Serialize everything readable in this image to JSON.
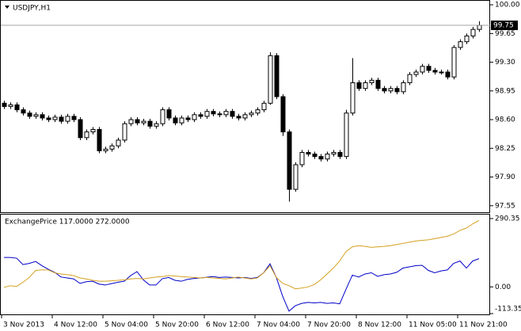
{
  "chart_data": [
    {
      "type": "candlestick",
      "title": "USDJPY,H1",
      "open": [
        98.8,
        98.76,
        98.78,
        98.72,
        98.68,
        98.64,
        98.66,
        98.62,
        98.6,
        98.63,
        98.58,
        98.64,
        98.6,
        98.38,
        98.45,
        98.48,
        98.22,
        98.24,
        98.28,
        98.35,
        98.55,
        98.6,
        98.56,
        98.58,
        98.52,
        98.55,
        98.72,
        98.62,
        98.56,
        98.62,
        98.6,
        98.66,
        98.64,
        98.7,
        98.67,
        98.66,
        98.7,
        98.64,
        98.62,
        98.66,
        98.68,
        98.72,
        98.8,
        99.38,
        98.88,
        98.45,
        97.75,
        98.05,
        98.2,
        98.18,
        98.15,
        98.12,
        98.18,
        98.2,
        98.15,
        98.68,
        99.05,
        98.98,
        99.05,
        99.08,
        98.98,
        98.95,
        98.98,
        98.94,
        99.05,
        99.15,
        99.18,
        99.25,
        99.2,
        99.18,
        99.18,
        99.12,
        99.48,
        99.55,
        99.62,
        99.7
      ],
      "high": [
        98.83,
        98.81,
        98.81,
        98.75,
        98.71,
        98.69,
        98.69,
        98.65,
        98.66,
        98.66,
        98.67,
        98.67,
        98.63,
        98.48,
        98.51,
        98.51,
        98.27,
        98.31,
        98.38,
        98.58,
        98.63,
        98.63,
        98.61,
        98.61,
        98.58,
        98.75,
        98.75,
        98.65,
        98.65,
        98.65,
        98.69,
        98.69,
        98.73,
        98.73,
        98.7,
        98.73,
        98.73,
        98.67,
        98.69,
        98.71,
        98.75,
        98.83,
        99.42,
        99.41,
        98.91,
        98.48,
        98.08,
        98.23,
        98.23,
        98.21,
        98.18,
        98.21,
        98.23,
        98.23,
        98.72,
        99.35,
        99.08,
        99.08,
        99.11,
        99.11,
        99.01,
        99.01,
        99.01,
        99.08,
        99.18,
        99.21,
        99.28,
        99.28,
        99.23,
        99.21,
        99.21,
        99.51,
        99.58,
        99.65,
        99.73,
        99.8
      ],
      "low": [
        98.73,
        98.73,
        98.69,
        98.65,
        98.61,
        98.61,
        98.59,
        98.57,
        98.57,
        98.55,
        98.55,
        98.57,
        98.35,
        98.35,
        98.42,
        98.19,
        98.19,
        98.21,
        98.25,
        98.32,
        98.52,
        98.53,
        98.53,
        98.49,
        98.49,
        98.52,
        98.59,
        98.53,
        98.53,
        98.57,
        98.57,
        98.61,
        98.61,
        98.64,
        98.63,
        98.63,
        98.61,
        98.59,
        98.59,
        98.63,
        98.65,
        98.69,
        98.78,
        98.85,
        98.4,
        97.6,
        97.72,
        98.02,
        98.15,
        98.12,
        98.09,
        98.09,
        98.15,
        98.12,
        98.12,
        98.65,
        98.95,
        98.95,
        99.02,
        98.95,
        98.92,
        98.92,
        98.91,
        98.91,
        99.02,
        99.12,
        99.15,
        99.17,
        99.15,
        99.15,
        99.09,
        99.09,
        99.45,
        99.52,
        99.59,
        99.67
      ],
      "close": [
        98.76,
        98.78,
        98.72,
        98.68,
        98.64,
        98.66,
        98.62,
        98.6,
        98.63,
        98.58,
        98.64,
        98.6,
        98.38,
        98.45,
        98.48,
        98.22,
        98.24,
        98.28,
        98.35,
        98.55,
        98.6,
        98.56,
        98.58,
        98.52,
        98.55,
        98.72,
        98.62,
        98.56,
        98.62,
        98.6,
        98.66,
        98.64,
        98.7,
        98.67,
        98.66,
        98.7,
        98.64,
        98.62,
        98.66,
        98.68,
        98.72,
        98.8,
        99.38,
        98.88,
        98.45,
        97.75,
        98.05,
        98.2,
        98.18,
        98.15,
        98.12,
        98.18,
        98.2,
        98.15,
        98.68,
        99.05,
        98.98,
        99.05,
        99.08,
        98.98,
        98.95,
        98.98,
        98.94,
        99.05,
        99.15,
        99.18,
        99.25,
        99.2,
        99.18,
        99.18,
        99.12,
        99.48,
        99.55,
        99.62,
        99.7,
        99.75
      ],
      "up_color": "#ffffff",
      "down_color": "#000000",
      "ylim": [
        97.49,
        100.02
      ],
      "yticks": [
        {
          "value": 100,
          "label": "100.00"
        },
        99.65,
        {
          "value": 99.3,
          "label": "99.30"
        },
        98.95,
        {
          "value": 98.6,
          "label": "98.60"
        },
        98.25,
        {
          "value": 97.9,
          "label": "97.90"
        },
        97.55
      ],
      "current_price": 99.75
    },
    {
      "type": "line",
      "title": "ExchangePrice 117.0000 272.0000",
      "series": [
        {
          "color": "#0000c8",
          "values": [
            125,
            125,
            122,
            95,
            100,
            108,
            90,
            75,
            62,
            42,
            38,
            34,
            15,
            22,
            24,
            12,
            8,
            14,
            20,
            24,
            48,
            65,
            30,
            8,
            8,
            35,
            40,
            28,
            24,
            32,
            36,
            38,
            41,
            44,
            40,
            42,
            40,
            38,
            40,
            36,
            40,
            60,
            98,
            40,
            -40,
            -103,
            -80,
            -70,
            -66,
            -68,
            -66,
            -70,
            -68,
            -72,
            -10,
            50,
            42,
            55,
            60,
            45,
            52,
            55,
            62,
            80,
            85,
            90,
            92,
            70,
            60,
            68,
            72,
            100,
            110,
            80,
            110,
            120
          ]
        },
        {
          "color": "#d4a020",
          "values": [
            -2,
            5,
            2,
            20,
            40,
            70,
            72,
            72,
            60,
            55,
            52,
            48,
            38,
            34,
            28,
            24,
            24,
            26,
            28,
            30,
            34,
            36,
            34,
            38,
            42,
            44,
            48,
            46,
            44,
            42,
            40,
            38,
            40,
            38,
            36,
            34,
            38,
            42,
            38,
            34,
            38,
            60,
            90,
            40,
            15,
            5,
            -8,
            -5,
            0,
            10,
            30,
            55,
            80,
            110,
            150,
            170,
            175,
            172,
            168,
            170,
            172,
            175,
            180,
            185,
            190,
            195,
            198,
            200,
            205,
            210,
            215,
            225,
            240,
            250,
            268,
            282
          ]
        }
      ],
      "ylim": [
        -113.35,
        290.35
      ],
      "yticks": [
        290.35,
        {
          "value": 0,
          "label": "0.00"
        },
        -113.35
      ],
      "xticks": [
        {
          "value": 0,
          "label": "3 Nov 2013"
        },
        {
          "value": 8,
          "label": "4 Nov 12:00"
        },
        {
          "value": 16,
          "label": "5 Nov 04:00"
        },
        {
          "value": 24,
          "label": "5 Nov 20:00"
        },
        {
          "value": 32,
          "label": "6 Nov 12:00"
        },
        {
          "value": 40,
          "label": "7 Nov 04:00"
        },
        {
          "value": 48,
          "label": "7 Nov 20:00"
        },
        {
          "value": 56,
          "label": "8 Nov 12:00"
        },
        {
          "value": 64,
          "label": "11 Nov 05:00"
        },
        {
          "value": 72,
          "label": "11 Nov 21:00"
        }
      ]
    }
  ]
}
